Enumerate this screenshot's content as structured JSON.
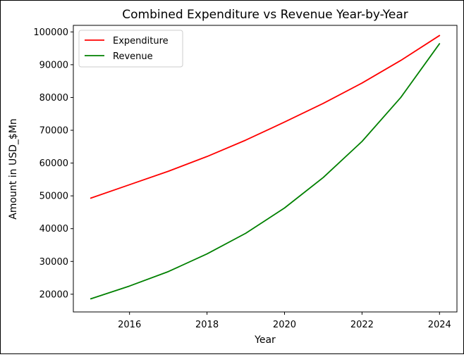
{
  "chart_data": {
    "type": "line",
    "title": "Combined Expenditure vs Revenue Year-by-Year",
    "xlabel": "Year",
    "ylabel": "Amount in USD_$Mn",
    "x": [
      2015,
      2016,
      2017,
      2018,
      2019,
      2020,
      2021,
      2022,
      2023,
      2024
    ],
    "xticks": [
      2016,
      2018,
      2020,
      2022,
      2024
    ],
    "xtick_labels": [
      "2016",
      "2018",
      "2020",
      "2022",
      "2024"
    ],
    "yticks": [
      20000,
      30000,
      40000,
      50000,
      60000,
      70000,
      80000,
      90000,
      100000
    ],
    "ytick_labels": [
      "20000",
      "30000",
      "40000",
      "50000",
      "60000",
      "70000",
      "80000",
      "90000",
      "100000"
    ],
    "xlim": [
      2014.55,
      2024.45
    ],
    "ylim": [
      14600,
      102000
    ],
    "grid": false,
    "legend_position": "top-left",
    "series": [
      {
        "name": "Expenditure",
        "color": "#ff0000",
        "values": [
          49300,
          53400,
          57500,
          62000,
          67000,
          72500,
          78200,
          84400,
          91300,
          98900
        ]
      },
      {
        "name": "Revenue",
        "color": "#008000",
        "values": [
          18600,
          22500,
          26900,
          32300,
          38600,
          46300,
          55600,
          66600,
          80000,
          96400
        ]
      }
    ]
  }
}
